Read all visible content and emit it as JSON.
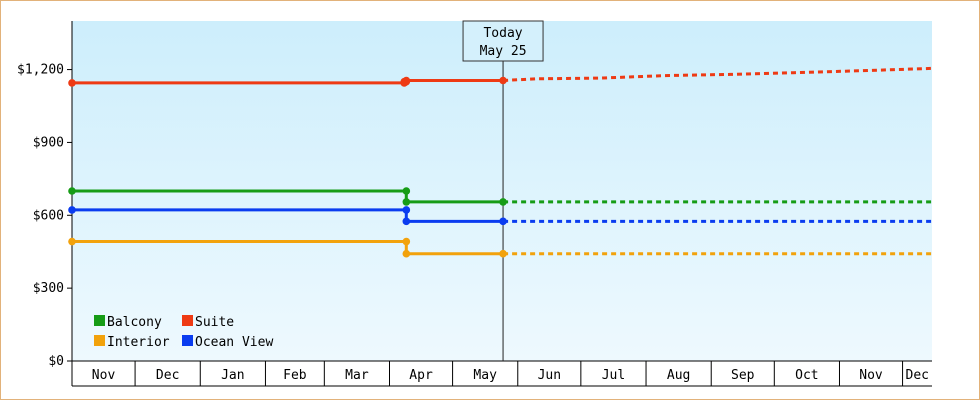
{
  "chart_data": {
    "type": "line",
    "ylim": [
      0,
      1400
    ],
    "y_ticks": [
      {
        "value": 0,
        "label": "$0"
      },
      {
        "value": 300,
        "label": "$300"
      },
      {
        "value": 600,
        "label": "$600"
      },
      {
        "value": 900,
        "label": "$900"
      },
      {
        "value": 1200,
        "label": "$1,200"
      }
    ],
    "x_range": [
      "2024-11-01",
      "2025-12-15"
    ],
    "months": [
      {
        "start": "2024-11-01",
        "end": "2024-11-30",
        "label": "Nov"
      },
      {
        "start": "2024-12-01",
        "end": "2024-12-31",
        "label": "Dec"
      },
      {
        "start": "2025-01-01",
        "end": "2025-01-31",
        "label": "Jan"
      },
      {
        "start": "2025-02-01",
        "end": "2025-02-28",
        "label": "Feb"
      },
      {
        "start": "2025-03-01",
        "end": "2025-03-31",
        "label": "Mar"
      },
      {
        "start": "2025-04-01",
        "end": "2025-04-30",
        "label": "Apr"
      },
      {
        "start": "2025-05-01",
        "end": "2025-05-31",
        "label": "May"
      },
      {
        "start": "2025-06-01",
        "end": "2025-06-30",
        "label": "Jun"
      },
      {
        "start": "2025-07-01",
        "end": "2025-07-31",
        "label": "Jul"
      },
      {
        "start": "2025-08-01",
        "end": "2025-08-31",
        "label": "Aug"
      },
      {
        "start": "2025-09-01",
        "end": "2025-09-30",
        "label": "Sep"
      },
      {
        "start": "2025-10-01",
        "end": "2025-10-31",
        "label": "Oct"
      },
      {
        "start": "2025-11-01",
        "end": "2025-11-30",
        "label": "Nov"
      },
      {
        "start": "2025-12-01",
        "end": "2025-12-15",
        "label": "Dec"
      }
    ],
    "today": {
      "date": "2025-05-25",
      "line1": "Today",
      "line2": "May 25"
    },
    "legend_placement": "bottom-left",
    "grid": false,
    "series": [
      {
        "name": "Balcony",
        "color": "#169c16",
        "points": [
          [
            "2024-11-01",
            700
          ],
          [
            "2025-04-09",
            700
          ],
          [
            "2025-04-09",
            655
          ],
          [
            "2025-05-25",
            655
          ]
        ],
        "forecast": [
          [
            "2025-05-25",
            655
          ],
          [
            "2025-12-15",
            655
          ]
        ]
      },
      {
        "name": "Suite",
        "color": "#ee3a14",
        "points": [
          [
            "2024-11-01",
            1145
          ],
          [
            "2025-04-08",
            1145
          ],
          [
            "2025-04-08",
            1150
          ],
          [
            "2025-04-09",
            1150
          ],
          [
            "2025-04-09",
            1155
          ],
          [
            "2025-05-25",
            1155
          ]
        ],
        "forecast": [
          [
            "2025-05-25",
            1155
          ],
          [
            "2025-06-10",
            1162
          ],
          [
            "2025-07-10",
            1165
          ],
          [
            "2025-08-10",
            1175
          ],
          [
            "2025-09-10",
            1180
          ],
          [
            "2025-10-10",
            1187
          ],
          [
            "2025-11-10",
            1195
          ],
          [
            "2025-12-15",
            1205
          ]
        ]
      },
      {
        "name": "Interior",
        "color": "#f2a20c",
        "points": [
          [
            "2024-11-01",
            492
          ],
          [
            "2025-04-09",
            492
          ],
          [
            "2025-04-09",
            442
          ],
          [
            "2025-05-25",
            442
          ]
        ],
        "forecast": [
          [
            "2025-05-25",
            442
          ],
          [
            "2025-12-15",
            442
          ]
        ]
      },
      {
        "name": "Ocean View",
        "color": "#0a3cf0",
        "points": [
          [
            "2024-11-01",
            622
          ],
          [
            "2025-04-09",
            622
          ],
          [
            "2025-04-09",
            575
          ],
          [
            "2025-05-25",
            575
          ]
        ],
        "forecast": [
          [
            "2025-05-25",
            575
          ],
          [
            "2025-12-15",
            575
          ]
        ]
      }
    ]
  }
}
